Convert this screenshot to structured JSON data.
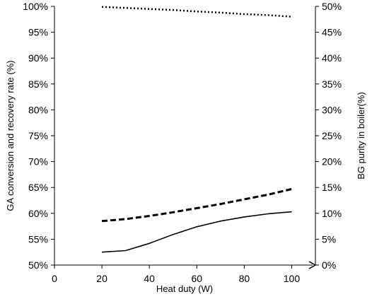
{
  "chart_data": {
    "type": "line",
    "xlabel": "Heat duty (W)",
    "ylabel_left": "GA conversion and recovery rate (%)",
    "ylabel_right": "BG purity in boiler(%)",
    "xlim": [
      0,
      110
    ],
    "xticks": [
      0,
      20,
      40,
      60,
      80,
      100
    ],
    "ylim_left": [
      50,
      100
    ],
    "ylim_right": [
      0,
      50
    ],
    "yticks_left": [
      "50%",
      "55%",
      "60%",
      "65%",
      "70%",
      "75%",
      "80%",
      "85%",
      "90%",
      "95%",
      "100%"
    ],
    "yticks_right": [
      "0%",
      "5%",
      "10%",
      "15%",
      "20%",
      "25%",
      "30%",
      "35%",
      "40%",
      "45%",
      "50%"
    ],
    "grid": false,
    "legend": "none",
    "series": [
      {
        "style": "dotted",
        "axis": "left",
        "color": "#000000",
        "x": [
          20,
          30,
          40,
          50,
          60,
          70,
          80,
          90,
          100
        ],
        "y": [
          99.9,
          99.7,
          99.5,
          99.3,
          99.0,
          98.8,
          98.5,
          98.3,
          98.0
        ]
      },
      {
        "style": "dashed",
        "axis": "left",
        "color": "#000000",
        "x": [
          20,
          30,
          40,
          50,
          60,
          70,
          80,
          90,
          100
        ],
        "y": [
          58.5,
          58.9,
          59.5,
          60.2,
          61.0,
          61.8,
          62.7,
          63.6,
          64.7
        ]
      },
      {
        "style": "solid",
        "axis": "left",
        "color": "#000000",
        "x": [
          20,
          30,
          40,
          50,
          60,
          70,
          80,
          90,
          100
        ],
        "y": [
          52.5,
          52.8,
          54.2,
          55.9,
          57.4,
          58.5,
          59.3,
          59.9,
          60.3
        ]
      }
    ]
  }
}
